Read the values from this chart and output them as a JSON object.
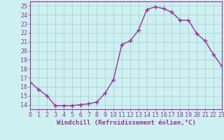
{
  "x": [
    0,
    1,
    2,
    3,
    4,
    5,
    6,
    7,
    8,
    9,
    10,
    11,
    12,
    13,
    14,
    15,
    16,
    17,
    18,
    19,
    20,
    21,
    22,
    23
  ],
  "y": [
    16.5,
    15.7,
    15.0,
    13.9,
    13.9,
    13.9,
    14.0,
    14.1,
    14.3,
    15.3,
    16.8,
    20.7,
    21.1,
    22.3,
    24.6,
    24.9,
    24.7,
    24.3,
    23.4,
    23.4,
    21.9,
    21.1,
    19.6,
    18.3
  ],
  "line_color": "#993399",
  "marker": "+",
  "markersize": 4,
  "linewidth": 1.0,
  "xlabel": "Windchill (Refroidissement éolien,°C)",
  "xlim": [
    0,
    23
  ],
  "ylim": [
    13.5,
    25.5
  ],
  "yticks": [
    14,
    15,
    16,
    17,
    18,
    19,
    20,
    21,
    22,
    23,
    24,
    25
  ],
  "xticks": [
    0,
    1,
    2,
    3,
    4,
    5,
    6,
    7,
    8,
    9,
    10,
    11,
    12,
    13,
    14,
    15,
    16,
    17,
    18,
    19,
    20,
    21,
    22,
    23
  ],
  "bg_color": "#cdf0f0",
  "grid_color": "#aacccc",
  "spine_color": "#993399",
  "tick_color": "#993399",
  "label_color": "#993399",
  "xlabel_fontsize": 6.5,
  "tick_fontsize": 6.0
}
